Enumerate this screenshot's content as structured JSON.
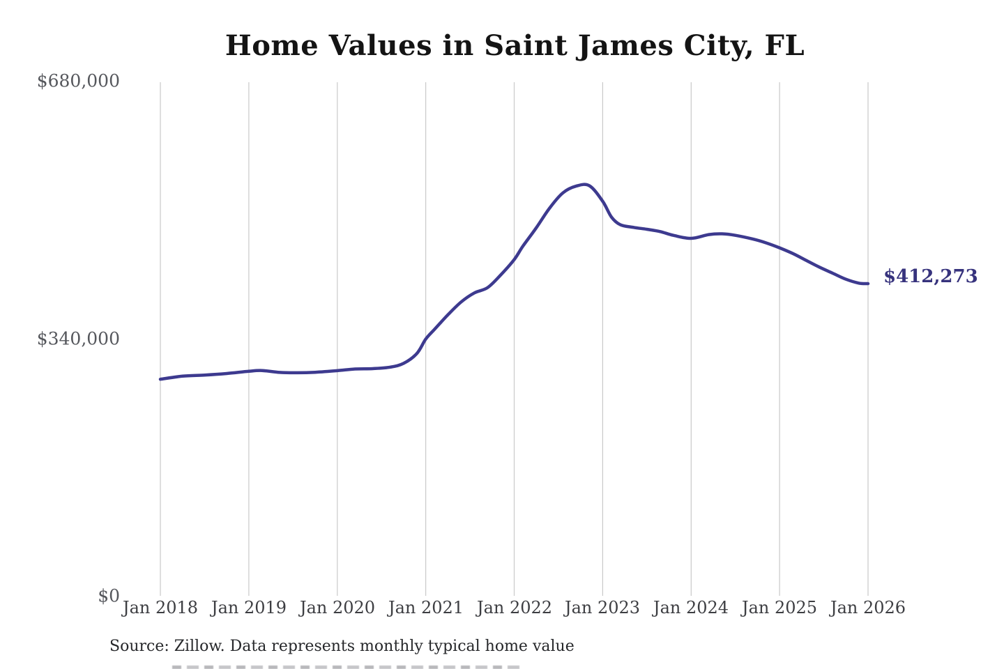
{
  "header": {
    "title": "Home Values in Saint James City, FL"
  },
  "chart_data": {
    "type": "line",
    "title": "Home Values in Saint James City, FL",
    "series_name": "Monthly typical home value",
    "xlabel": "",
    "ylabel": "",
    "x_range": [
      2018,
      2026
    ],
    "y_range": [
      0,
      680000
    ],
    "grid": "vertical-only",
    "legend": "none",
    "line_color": "#3d3a8f",
    "grid_color": "#c9c9c9",
    "end_label_color": "#37337d",
    "end_label": "$412,273",
    "end_value": 412273,
    "x_ticks": [
      {
        "label": "Jan 2018",
        "year": 2018
      },
      {
        "label": "Jan 2019",
        "year": 2019
      },
      {
        "label": "Jan 2020",
        "year": 2020
      },
      {
        "label": "Jan 2021",
        "year": 2021
      },
      {
        "label": "Jan 2022",
        "year": 2022
      },
      {
        "label": "Jan 2023",
        "year": 2023
      },
      {
        "label": "Jan 2024",
        "year": 2024
      },
      {
        "label": "Jan 2025",
        "year": 2025
      },
      {
        "label": "Jan 2026",
        "year": 2026
      }
    ],
    "y_ticks": [
      {
        "label": "$0",
        "value": 0
      },
      {
        "label": "$340,000",
        "value": 340000
      },
      {
        "label": "$680,000",
        "value": 680000
      }
    ],
    "points": [
      [
        2018.0,
        286000
      ],
      [
        2018.25,
        290000
      ],
      [
        2018.5,
        291500
      ],
      [
        2018.75,
        293500
      ],
      [
        2019.0,
        296500
      ],
      [
        2019.15,
        297500
      ],
      [
        2019.35,
        295000
      ],
      [
        2019.55,
        294500
      ],
      [
        2019.75,
        295200
      ],
      [
        2020.0,
        297300
      ],
      [
        2020.2,
        299500
      ],
      [
        2020.4,
        300000
      ],
      [
        2020.6,
        302000
      ],
      [
        2020.75,
        307000
      ],
      [
        2020.9,
        320000
      ],
      [
        2021.0,
        339000
      ],
      [
        2021.1,
        352000
      ],
      [
        2021.25,
        371000
      ],
      [
        2021.4,
        388000
      ],
      [
        2021.55,
        400000
      ],
      [
        2021.7,
        407000
      ],
      [
        2021.85,
        424000
      ],
      [
        2022.0,
        444000
      ],
      [
        2022.1,
        462000
      ],
      [
        2022.25,
        486000
      ],
      [
        2022.4,
        512000
      ],
      [
        2022.55,
        532000
      ],
      [
        2022.7,
        541000
      ],
      [
        2022.85,
        541500
      ],
      [
        2023.0,
        521000
      ],
      [
        2023.1,
        500000
      ],
      [
        2023.2,
        490000
      ],
      [
        2023.35,
        486500
      ],
      [
        2023.5,
        484000
      ],
      [
        2023.65,
        481000
      ],
      [
        2023.8,
        476000
      ],
      [
        2024.0,
        472000
      ],
      [
        2024.2,
        477000
      ],
      [
        2024.35,
        478000
      ],
      [
        2024.5,
        476000
      ],
      [
        2024.7,
        471000
      ],
      [
        2024.85,
        466000
      ],
      [
        2025.0,
        459500
      ],
      [
        2025.15,
        452000
      ],
      [
        2025.3,
        443000
      ],
      [
        2025.45,
        434000
      ],
      [
        2025.6,
        426000
      ],
      [
        2025.75,
        418000
      ],
      [
        2025.9,
        412800
      ],
      [
        2026.0,
        412273
      ]
    ]
  },
  "footer": {
    "source": "Source: Zillow. Data represents monthly typical home value"
  }
}
